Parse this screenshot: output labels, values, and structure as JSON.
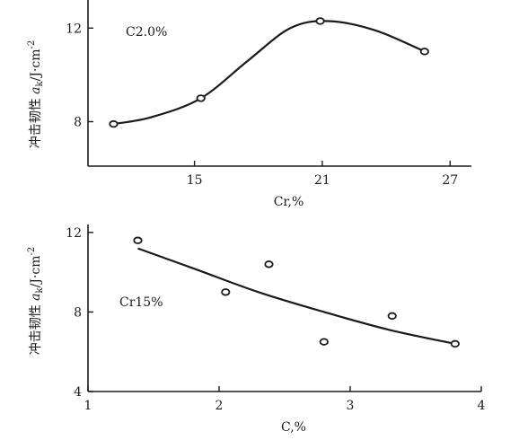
{
  "chart_data": [
    {
      "type": "line",
      "annotation": "C2.0%",
      "xlabel": "Cr,%",
      "ylabel": "冲击韧性 a_k/J·cm⁻²",
      "ylabel_main": "冲击韧性 ",
      "ylabel_sym": "a",
      "ylabel_sub": "k",
      "ylabel_unit": "/J·cm",
      "ylabel_sup": "-2",
      "x_ticks": [
        15,
        21,
        27
      ],
      "y_ticks": [
        8,
        12
      ],
      "xlim": [
        10,
        28
      ],
      "ylim": [
        6.1,
        13.2
      ],
      "grid": false,
      "series": [
        {
          "x": [
            11.2,
            15.3,
            20.9,
            25.8
          ],
          "y": [
            7.9,
            9.0,
            12.3,
            11.0
          ]
        }
      ],
      "curve": {
        "x": [
          11.2,
          13.0,
          15.3,
          17.5,
          19.5,
          21.3,
          23.5,
          25.8
        ],
        "y": [
          7.9,
          8.2,
          9.0,
          10.6,
          12.0,
          12.3,
          11.9,
          11.0
        ]
      }
    },
    {
      "type": "scatter",
      "annotation": "Cr15%",
      "xlabel": "C,%",
      "ylabel": "冲击韧性 a_k/J·cm⁻²",
      "ylabel_main": "冲击韧性 ",
      "ylabel_sym": "a",
      "ylabel_sub": "k",
      "ylabel_unit": "/J·cm",
      "ylabel_sup": "-2",
      "x_ticks": [
        1,
        2,
        3,
        4
      ],
      "y_ticks": [
        4,
        8,
        12
      ],
      "xlim": [
        1,
        4
      ],
      "ylim": [
        4,
        12.4
      ],
      "grid": false,
      "series": [
        {
          "x": [
            1.38,
            2.05,
            2.38,
            2.8,
            3.32,
            3.8
          ],
          "y": [
            11.6,
            9.0,
            10.4,
            6.5,
            7.8,
            6.4
          ]
        }
      ],
      "curve": {
        "x": [
          1.38,
          1.8,
          2.3,
          2.8,
          3.3,
          3.8
        ],
        "y": [
          11.2,
          10.2,
          9.0,
          8.0,
          7.1,
          6.4
        ]
      }
    }
  ]
}
